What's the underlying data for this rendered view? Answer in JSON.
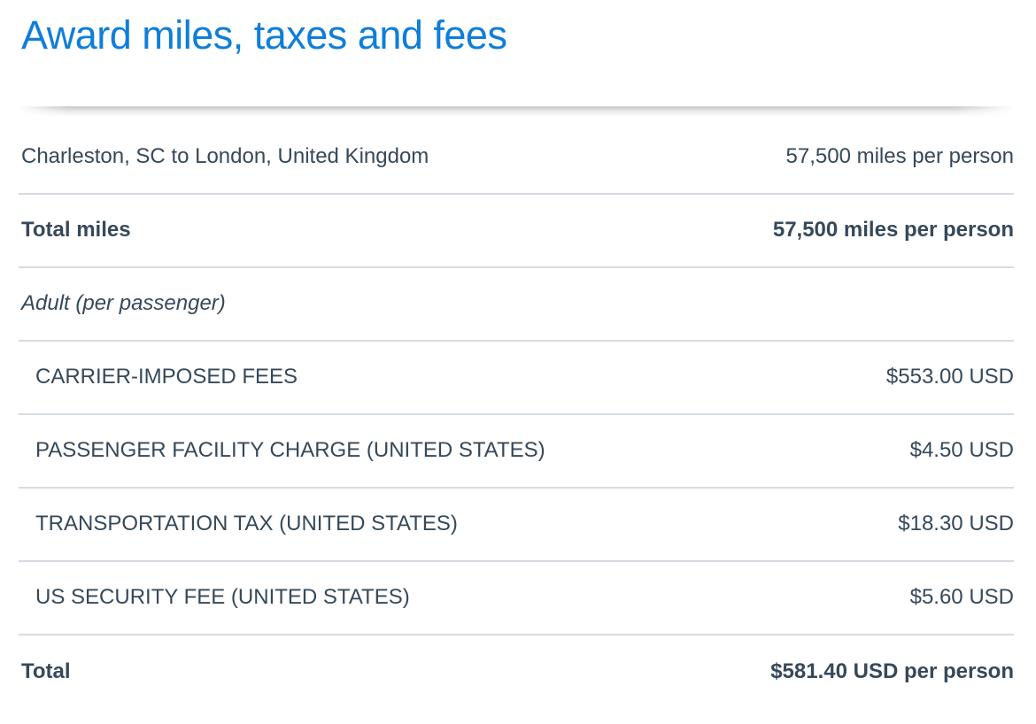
{
  "page": {
    "title": "Award miles, taxes and fees"
  },
  "colors": {
    "title": "#0f7ed9",
    "text": "#36495a",
    "divider": "#d5dbe1",
    "background": "#ffffff"
  },
  "table": {
    "rows": [
      {
        "label": "Charleston, SC to London, United Kingdom",
        "value": "57,500 miles per person",
        "style": "regular"
      },
      {
        "label": "Total miles",
        "value": "57,500 miles per person",
        "style": "bold"
      },
      {
        "label": "Adult (per passenger)",
        "value": "",
        "style": "italic"
      },
      {
        "label": "CARRIER-IMPOSED FEES",
        "value": "$553.00 USD",
        "style": "fee"
      },
      {
        "label": "PASSENGER FACILITY CHARGE (UNITED STATES)",
        "value": "$4.50 USD",
        "style": "fee"
      },
      {
        "label": "TRANSPORTATION TAX (UNITED STATES)",
        "value": "$18.30 USD",
        "style": "fee"
      },
      {
        "label": "US SECURITY FEE (UNITED STATES)",
        "value": "$5.60 USD",
        "style": "fee"
      },
      {
        "label": "Total",
        "value": "$581.40 USD per person",
        "style": "bold-total"
      }
    ]
  }
}
